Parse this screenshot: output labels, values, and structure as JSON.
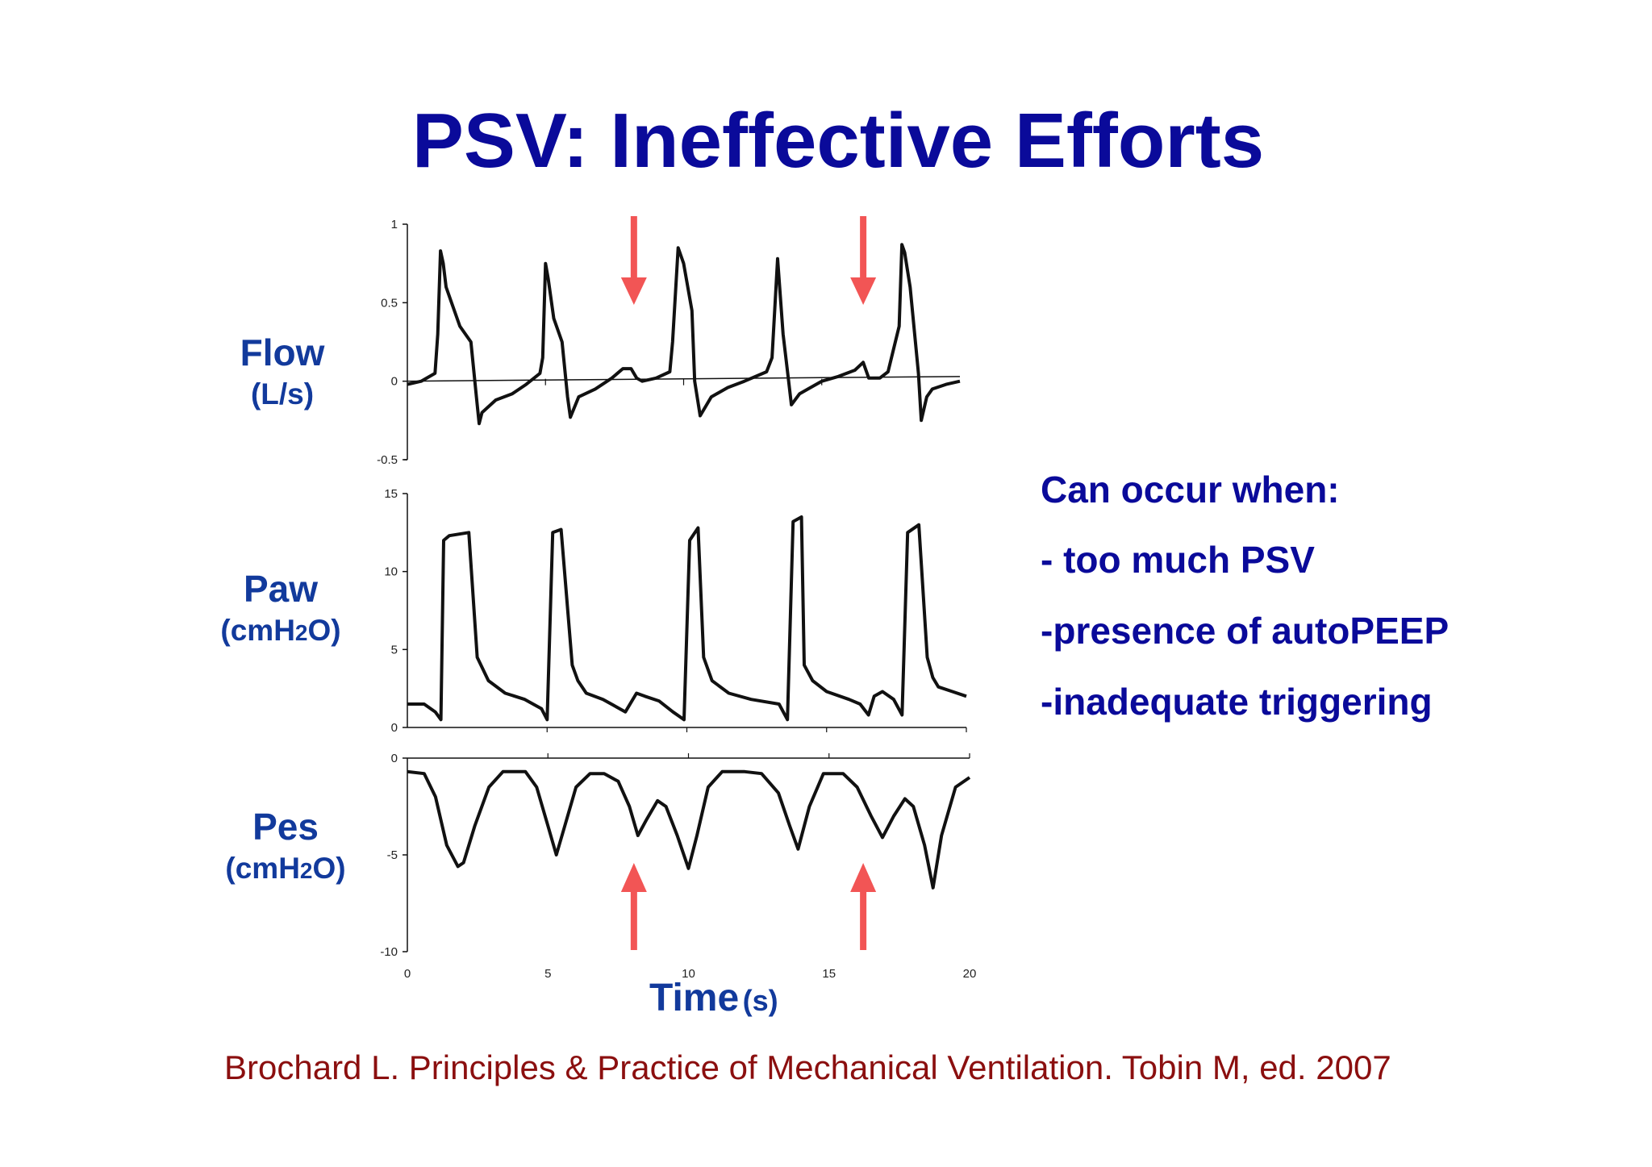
{
  "title": "PSV: Ineffective Efforts",
  "labels": {
    "flow": {
      "name": "Flow",
      "unit": "(L/s)"
    },
    "paw": {
      "name": "Paw",
      "unit_pre": "(cmH",
      "unit_sub": "2",
      "unit_post": "O)"
    },
    "pes": {
      "name": "Pes",
      "unit_pre": "(cmH",
      "unit_sub": "2",
      "unit_post": "O)"
    }
  },
  "notes": {
    "heading": "Can occur when:",
    "items": [
      "- too much PSV",
      "-presence of autoPEEP",
      "-inadequate triggering"
    ]
  },
  "x_axis": {
    "name": "Time",
    "unit": "(s)"
  },
  "citation": "Brochard L. Principles & Practice of Mechanical Ventilation. Tobin M, ed. 2007",
  "colors": {
    "title": "#0a0a9a",
    "labels": "#123a9c",
    "citation": "#8b0f0f",
    "arrow": "#f25555",
    "trace": "#111111"
  },
  "chart_data": [
    {
      "type": "line",
      "name_ref": "Flow",
      "ylim": [
        -0.5,
        1
      ],
      "yticks": [
        "1",
        "0.5",
        "0",
        "-0.5"
      ],
      "ytick_values": [
        1,
        0.5,
        0,
        -0.5
      ],
      "xlim": [
        0,
        20
      ],
      "x": [
        0,
        0.5,
        1.0,
        1.1,
        1.2,
        1.3,
        1.4,
        1.6,
        1.9,
        2.3,
        2.5,
        2.6,
        2.7,
        3.2,
        3.8,
        4.3,
        4.8,
        4.9,
        5.0,
        5.1,
        5.3,
        5.6,
        5.8,
        5.9,
        6.2,
        6.8,
        7.4,
        7.8,
        8.1,
        8.3,
        8.5,
        9.0,
        9.5,
        9.6,
        9.8,
        10.0,
        10.3,
        10.4,
        10.6,
        11.0,
        11.6,
        12.2,
        13.0,
        13.2,
        13.4,
        13.6,
        13.8,
        13.9,
        14.2,
        14.5,
        15.0,
        15.6,
        16.2,
        16.5,
        16.7,
        17.1,
        17.4,
        17.8,
        17.9,
        18.0,
        18.2,
        18.5,
        18.6,
        18.8,
        19.0,
        19.5,
        20.0
      ],
      "y": [
        -0.02,
        0.0,
        0.05,
        0.3,
        0.83,
        0.75,
        0.6,
        0.5,
        0.35,
        0.25,
        -0.1,
        -0.27,
        -0.2,
        -0.12,
        -0.08,
        -0.02,
        0.05,
        0.15,
        0.75,
        0.65,
        0.4,
        0.25,
        -0.1,
        -0.23,
        -0.1,
        -0.05,
        0.02,
        0.08,
        0.08,
        0.02,
        0.0,
        0.02,
        0.06,
        0.25,
        0.85,
        0.75,
        0.45,
        0.0,
        -0.22,
        -0.1,
        -0.04,
        0.0,
        0.06,
        0.15,
        0.78,
        0.3,
        0.0,
        -0.15,
        -0.08,
        -0.05,
        0.0,
        0.03,
        0.07,
        0.12,
        0.02,
        0.02,
        0.06,
        0.35,
        0.87,
        0.82,
        0.6,
        0.05,
        -0.25,
        -0.1,
        -0.05,
        -0.02,
        0.0
      ],
      "baseline": {
        "x": [
          0,
          20
        ],
        "y": [
          0,
          0.03
        ]
      }
    },
    {
      "type": "line",
      "name_ref": "Paw",
      "ylim": [
        0,
        15
      ],
      "yticks": [
        "15",
        "10",
        "5",
        "0"
      ],
      "ytick_values": [
        15,
        10,
        5,
        0
      ],
      "xlim": [
        0,
        20
      ],
      "x": [
        0,
        0.6,
        1.0,
        1.2,
        1.3,
        1.5,
        2.2,
        2.5,
        2.9,
        3.5,
        4.2,
        4.8,
        5.0,
        5.2,
        5.5,
        5.9,
        6.1,
        6.4,
        7.0,
        7.8,
        8.2,
        8.5,
        9.0,
        9.5,
        9.9,
        10.1,
        10.4,
        10.6,
        10.9,
        11.5,
        12.3,
        13.3,
        13.6,
        13.8,
        14.1,
        14.2,
        14.5,
        15.0,
        15.8,
        16.2,
        16.5,
        16.7,
        17.0,
        17.4,
        17.7,
        17.9,
        18.3,
        18.6,
        18.8,
        19.0,
        19.5,
        20.0
      ],
      "y": [
        1.5,
        1.5,
        1.0,
        0.5,
        12.0,
        12.3,
        12.5,
        4.5,
        3.0,
        2.2,
        1.8,
        1.2,
        0.5,
        12.5,
        12.7,
        4.0,
        3.0,
        2.2,
        1.8,
        1.0,
        2.2,
        2.0,
        1.7,
        1.0,
        0.5,
        12.0,
        12.8,
        4.5,
        3.0,
        2.2,
        1.8,
        1.5,
        0.5,
        13.2,
        13.5,
        4.0,
        3.0,
        2.3,
        1.8,
        1.5,
        0.8,
        2.0,
        2.3,
        1.8,
        0.8,
        12.5,
        13.0,
        4.5,
        3.2,
        2.6,
        2.3,
        2.0
      ]
    },
    {
      "type": "line",
      "name_ref": "Pes",
      "ylim": [
        -10,
        0
      ],
      "yticks": [
        "0",
        "-5",
        "-10"
      ],
      "ytick_values": [
        0,
        -5,
        -10
      ],
      "xlim": [
        0,
        20
      ],
      "xticks": [
        "0",
        "5",
        "10",
        "15",
        "20"
      ],
      "xtick_values": [
        0,
        5,
        10,
        15,
        20
      ],
      "x": [
        0,
        0.6,
        1.0,
        1.4,
        1.8,
        2.0,
        2.4,
        2.9,
        3.4,
        4.2,
        4.6,
        5.0,
        5.3,
        5.6,
        6.0,
        6.5,
        7.0,
        7.5,
        7.9,
        8.2,
        8.5,
        8.9,
        9.2,
        9.6,
        10.0,
        10.3,
        10.7,
        11.2,
        12.0,
        12.6,
        13.2,
        13.6,
        13.9,
        14.3,
        14.8,
        15.5,
        16.0,
        16.5,
        16.9,
        17.3,
        17.7,
        18.0,
        18.4,
        18.7,
        19.0,
        19.5,
        20.0
      ],
      "y": [
        -0.7,
        -0.8,
        -2.0,
        -4.5,
        -5.6,
        -5.4,
        -3.5,
        -1.5,
        -0.7,
        -0.7,
        -1.5,
        -3.5,
        -5.0,
        -3.5,
        -1.5,
        -0.8,
        -0.8,
        -1.2,
        -2.5,
        -4.0,
        -3.2,
        -2.2,
        -2.5,
        -4.0,
        -5.7,
        -4.0,
        -1.5,
        -0.7,
        -0.7,
        -0.8,
        -1.8,
        -3.5,
        -4.7,
        -2.5,
        -0.8,
        -0.8,
        -1.5,
        -3.0,
        -4.1,
        -3.0,
        -2.1,
        -2.5,
        -4.5,
        -6.7,
        -4.0,
        -1.5,
        -1.0
      ]
    }
  ],
  "annotations": {
    "arrow_times": [
      8.2,
      16.5
    ]
  }
}
